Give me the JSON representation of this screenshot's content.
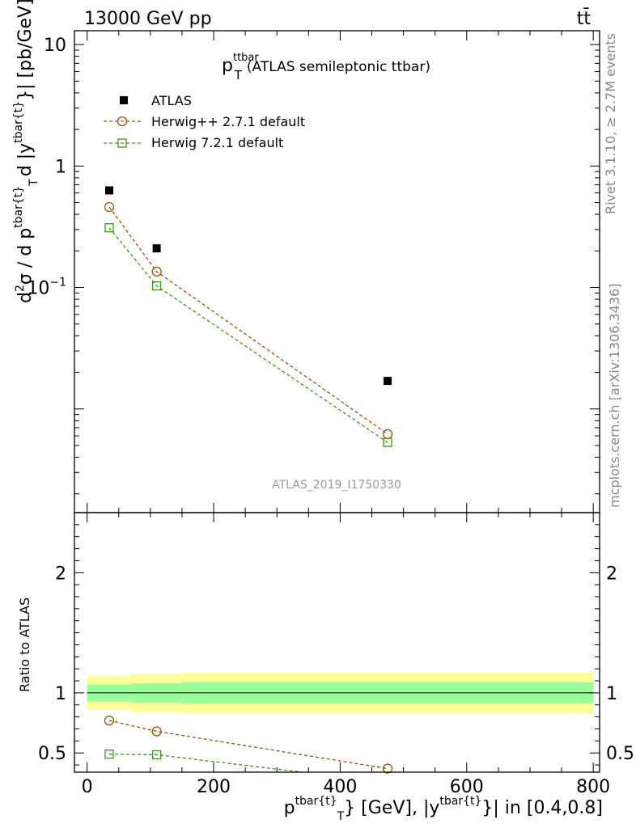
{
  "header": {
    "left": "13000 GeV pp",
    "right": "tt̄"
  },
  "plot_title": {
    "p": "p",
    "sup": "ttbar",
    "sub": "T",
    "rest": "(ATLAS semileptonic ttbar)"
  },
  "side_labels": {
    "rivet": "Rivet 3.1.10, ≥ 2.7M events",
    "mcplots": "mcplots.cern.ch [arXiv:1306.3436]"
  },
  "watermark": "ATLAS_2019_I1750330",
  "ylabel_main": {
    "p1": "d",
    "p1sup": "2",
    "p2": "σ / d p",
    "p2sup": "tbar{t}",
    "p2sub": "T",
    "p3": "d |y",
    "p3sup": "tbar{t}",
    "p4": "}| [pb/GeV]"
  },
  "ylabel_ratio": "Ratio to ATLAS",
  "xlabel": {
    "p1": "p",
    "p1sup": "tbar{t}",
    "p1sub": "T",
    "p2": "} [GeV], |y",
    "p2sup": "tbar{t}",
    "p3": "}| in [0.4,0.8]"
  },
  "legend": [
    {
      "name": "ATLAS",
      "marker": "filled-square",
      "color": "#000000"
    },
    {
      "name": "Herwig++ 2.7.1 default",
      "marker": "open-circle",
      "color": "#a05000"
    },
    {
      "name": "Herwig 7.2.1 default",
      "marker": "open-square",
      "color": "#3a9a10"
    }
  ],
  "chart_data": [
    {
      "type": "scatter",
      "panel": "main",
      "yscale": "log",
      "xlim": [
        -20,
        810
      ],
      "ylim": [
        0.0014,
        13
      ],
      "y_ticks": [
        {
          "v": 10,
          "label": "10"
        },
        {
          "v": 1,
          "label": "1"
        },
        {
          "v": 0.1,
          "label": "10^-1"
        }
      ],
      "series": [
        {
          "name": "ATLAS",
          "x": [
            35,
            110,
            475
          ],
          "y": [
            0.63,
            0.21,
            0.017
          ]
        },
        {
          "name": "Herwig++ 2.7.1 default",
          "x": [
            35,
            110,
            475
          ],
          "y": [
            0.46,
            0.135,
            0.0062
          ]
        },
        {
          "name": "Herwig 7.2.1 default",
          "x": [
            35,
            110,
            475
          ],
          "y": [
            0.31,
            0.103,
            0.0053
          ]
        }
      ]
    },
    {
      "type": "line",
      "panel": "ratio",
      "ylabel": "Ratio to ATLAS",
      "xlim": [
        -20,
        810
      ],
      "ylim": [
        0.34,
        2.5
      ],
      "x_ticks": [
        0,
        200,
        400,
        600,
        800
      ],
      "y_ticks": [
        0.5,
        1,
        2
      ],
      "bands": {
        "edges": [
          0,
          70,
          150,
          800
        ],
        "inner": [
          [
            0.93,
            1.07
          ],
          [
            0.92,
            1.08
          ],
          [
            0.91,
            1.09
          ]
        ],
        "outer": [
          [
            0.86,
            1.14
          ],
          [
            0.84,
            1.16
          ],
          [
            0.83,
            1.17
          ]
        ],
        "inner_color": "#99ff99",
        "outer_color": "#ffff99"
      },
      "series": [
        {
          "name": "Herwig++ 2.7.1 default",
          "x": [
            35,
            110,
            475
          ],
          "y": [
            0.77,
            0.68,
            0.37
          ]
        },
        {
          "name": "Herwig 7.2.1 default",
          "x": [
            35,
            110,
            340
          ],
          "y": [
            0.49,
            0.485,
            0.34
          ]
        }
      ]
    }
  ]
}
